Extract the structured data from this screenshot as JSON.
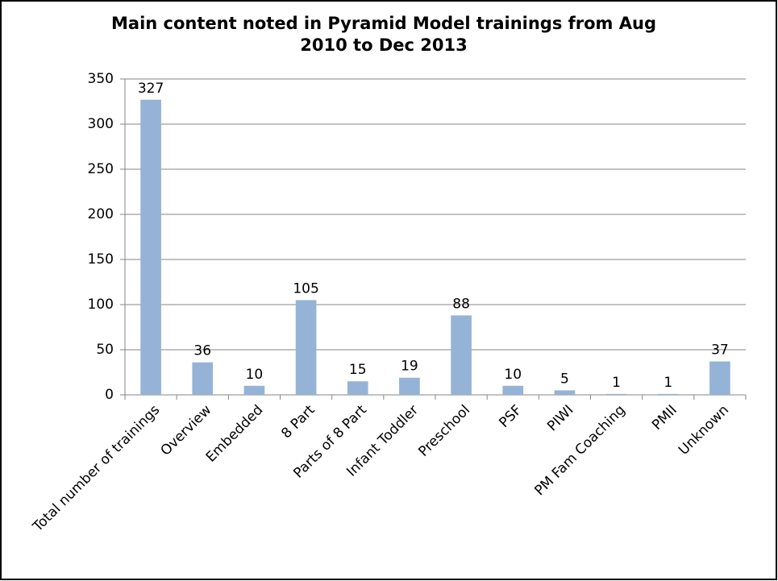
{
  "chart_data": {
    "type": "bar",
    "title": "Main content noted in Pyramid Model trainings from Aug 2010 to Dec 2013",
    "categories": [
      "Total number of trainings",
      "Overview",
      "Embedded",
      "8 Part",
      "Parts of 8 Part",
      "Infant Toddler",
      "Preschool",
      "PSF",
      "PIWI",
      "PM Fam Coaching",
      "PMII",
      "Unknown"
    ],
    "values": [
      327,
      36,
      10,
      105,
      15,
      19,
      88,
      10,
      5,
      1,
      1,
      37
    ],
    "color": "#95b3d7",
    "ylim": [
      0,
      350
    ],
    "yticks": [
      0,
      50,
      100,
      150,
      200,
      250,
      300,
      350
    ],
    "grid": true
  }
}
